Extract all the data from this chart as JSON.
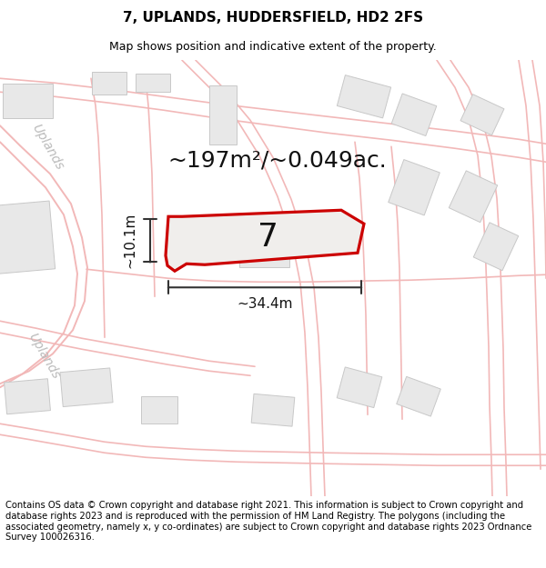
{
  "title": "7, UPLANDS, HUDDERSFIELD, HD2 2FS",
  "subtitle": "Map shows position and indicative extent of the property.",
  "area_label": "~197m²/~0.049ac.",
  "width_label": "~34.4m",
  "height_label": "~10.1m",
  "property_number": "7",
  "footer": "Contains OS data © Crown copyright and database right 2021. This information is subject to Crown copyright and database rights 2023 and is reproduced with the permission of HM Land Registry. The polygons (including the associated geometry, namely x, y co-ordinates) are subject to Crown copyright and database rights 2023 Ordnance Survey 100026316.",
  "map_bg": "#ffffff",
  "road_color": "#f2b8b8",
  "road_lw": 1.2,
  "building_color": "#e8e8e8",
  "building_edge": "#c8c8c8",
  "property_fill": "#f0eeec",
  "property_edge": "#cc0000",
  "dim_color": "#333333",
  "uplands_color": "#bbbbbb",
  "title_fontsize": 11,
  "subtitle_fontsize": 9,
  "footer_fontsize": 7.2,
  "area_fontsize": 18,
  "number_fontsize": 26,
  "dim_fontsize": 11,
  "uplands_fontsize": 10
}
